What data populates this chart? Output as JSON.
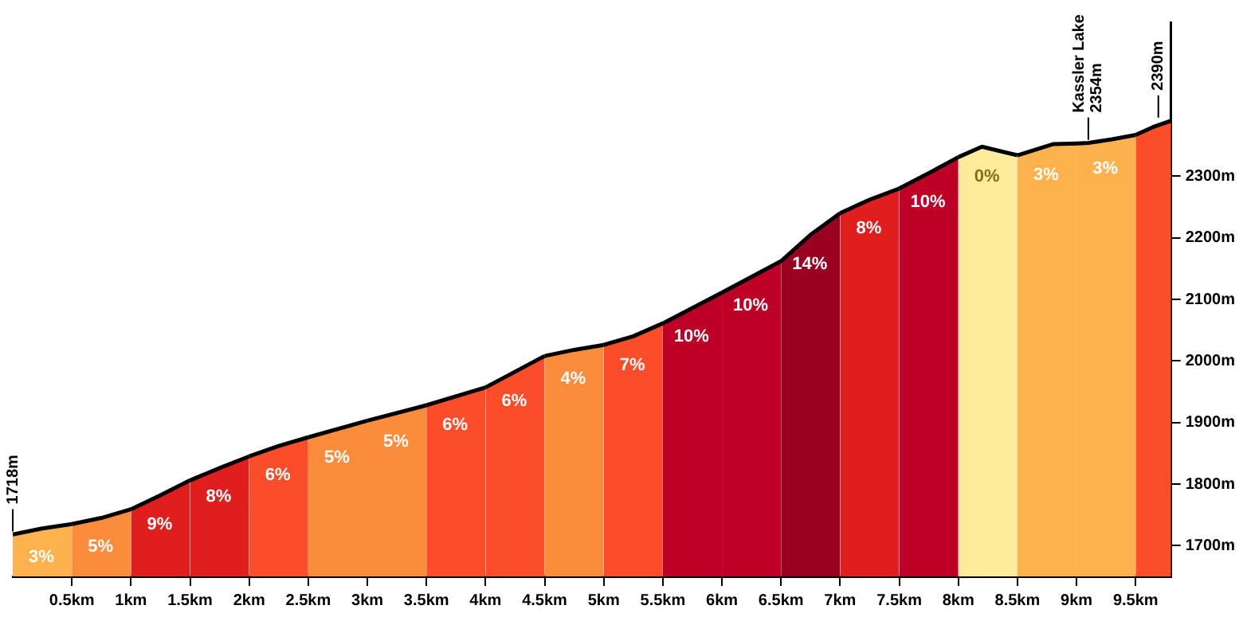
{
  "chart_data": {
    "type": "area",
    "xlim": [
      0,
      9.8
    ],
    "ylim": [
      1650,
      2550
    ],
    "xticks": [
      {
        "value": 0.5,
        "label": "0.5km"
      },
      {
        "value": 1,
        "label": "1km"
      },
      {
        "value": 1.5,
        "label": "1.5km"
      },
      {
        "value": 2,
        "label": "2km"
      },
      {
        "value": 2.5,
        "label": "2.5km"
      },
      {
        "value": 3,
        "label": "3km"
      },
      {
        "value": 3.5,
        "label": "3.5km"
      },
      {
        "value": 4,
        "label": "4km"
      },
      {
        "value": 4.5,
        "label": "4.5km"
      },
      {
        "value": 5,
        "label": "5km"
      },
      {
        "value": 5.5,
        "label": "5.5km"
      },
      {
        "value": 6,
        "label": "6km"
      },
      {
        "value": 6.5,
        "label": "6.5km"
      },
      {
        "value": 7,
        "label": "7km"
      },
      {
        "value": 7.5,
        "label": "7.5km"
      },
      {
        "value": 8,
        "label": "8km"
      },
      {
        "value": 8.5,
        "label": "8.5km"
      },
      {
        "value": 9,
        "label": "9km"
      },
      {
        "value": 9.5,
        "label": "9.5km"
      }
    ],
    "yticks": [
      {
        "value": 1700,
        "label": "1700m"
      },
      {
        "value": 1800,
        "label": "1800m"
      },
      {
        "value": 1900,
        "label": "1900m"
      },
      {
        "value": 2000,
        "label": "2000m"
      },
      {
        "value": 2100,
        "label": "2100m"
      },
      {
        "value": 2200,
        "label": "2200m"
      },
      {
        "value": 2300,
        "label": "2300m"
      }
    ],
    "grid": false,
    "legend": false,
    "marker": "none",
    "series": [
      {
        "color": "#fdb24e",
        "x": [
          0,
          0.25,
          0.5
        ],
        "values": [
          1718,
          1728,
          1735
        ]
      },
      {
        "color": "#fb8c3c",
        "x": [
          0.5,
          0.75,
          1
        ],
        "values": [
          1735,
          1745,
          1759
        ]
      },
      {
        "color": "#e01e1e",
        "x": [
          1,
          1.25,
          1.5
        ],
        "values": [
          1759,
          1782,
          1806
        ]
      },
      {
        "color": "#e01e1e",
        "x": [
          1.5,
          1.75,
          2
        ],
        "values": [
          1806,
          1826,
          1845
        ]
      },
      {
        "color": "#fc4d2a",
        "x": [
          2,
          2.25,
          2.5
        ],
        "values": [
          1845,
          1862,
          1876
        ]
      },
      {
        "color": "#fb8c3c",
        "x": [
          2.5,
          3
        ],
        "values": [
          1876,
          1903
        ]
      },
      {
        "color": "#fb8c3c",
        "x": [
          3,
          3.5
        ],
        "values": [
          1903,
          1928
        ]
      },
      {
        "color": "#fc4d2a",
        "x": [
          3.5,
          4
        ],
        "values": [
          1928,
          1957
        ]
      },
      {
        "color": "#fc4d2a",
        "x": [
          4,
          4.5
        ],
        "values": [
          1957,
          2008
        ]
      },
      {
        "color": "#fb8c3c",
        "x": [
          4.5,
          4.75,
          5
        ],
        "values": [
          2008,
          2018,
          2026
        ]
      },
      {
        "color": "#fc4d2a",
        "x": [
          5,
          5.25,
          5.5
        ],
        "values": [
          2026,
          2040,
          2061
        ]
      },
      {
        "color": "#be0027",
        "x": [
          5.5,
          6
        ],
        "values": [
          2061,
          2111
        ]
      },
      {
        "color": "#be0027",
        "x": [
          6,
          6.5
        ],
        "values": [
          2111,
          2162
        ]
      },
      {
        "color": "#9a0020",
        "x": [
          6.5,
          6.75,
          7
        ],
        "values": [
          2162,
          2205,
          2240
        ]
      },
      {
        "color": "#e01e1e",
        "x": [
          7,
          7.25,
          7.5
        ],
        "values": [
          2240,
          2262,
          2280
        ]
      },
      {
        "color": "#be0027",
        "x": [
          7.5,
          7.75,
          8
        ],
        "values": [
          2280,
          2305,
          2331
        ]
      },
      {
        "color": "#feeb9c",
        "x": [
          8,
          8.2,
          8.5
        ],
        "values": [
          2331,
          2348,
          2334
        ]
      },
      {
        "color": "#fdb24e",
        "x": [
          8.5,
          8.8,
          9
        ],
        "values": [
          2334,
          2352,
          2353
        ]
      },
      {
        "color": "#fdb24e",
        "x": [
          9,
          9.1,
          9.3,
          9.5
        ],
        "values": [
          2353,
          2354,
          2360,
          2367
        ]
      },
      {
        "color": "#fc4d2a",
        "x": [
          9.5,
          9.65,
          9.8
        ],
        "values": [
          2367,
          2380,
          2390
        ]
      }
    ],
    "annotations": [
      "3%",
      "5%",
      "9%",
      "8%",
      "6%",
      "5%",
      "5%",
      "6%",
      "6%",
      "4%",
      "7%",
      "10%",
      "10%",
      "14%",
      "8%",
      "10%",
      "0%",
      "3%",
      "3%",
      {
        "text": "1718m",
        "x": 0,
        "y": 1718
      },
      {
        "text": "Kassler Lake 2354m",
        "x": 9.1,
        "y": 2354
      },
      {
        "text": "2390m",
        "x": 9.8,
        "y": 2390
      }
    ]
  }
}
